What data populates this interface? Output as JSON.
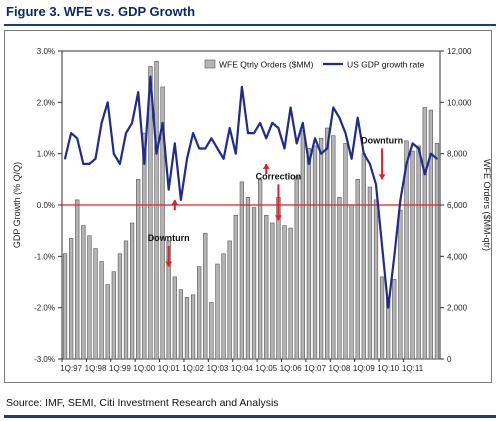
{
  "figure_title": "Figure 3. WFE vs. GDP Growth",
  "source": "Source: IMF, SEMI, Citi Investment Research and Analysis",
  "chart_data": {
    "type": "bar",
    "title": "",
    "x_tick_labels": [
      "1Q:97",
      "1Q:98",
      "1Q:99",
      "1Q:00",
      "1Q:01",
      "1Q:02",
      "1Q:03",
      "1Q:04",
      "1Q:05",
      "1Q:06",
      "1Q:07",
      "1Q:08",
      "1Q:09",
      "1Q:10",
      "1Q:11"
    ],
    "ylabel_left": "GDP Growth (% Q/Q)",
    "ylabel_right": "WFE Orders ($MM-qtr)",
    "ylim_left": [
      -3.0,
      3.0
    ],
    "ylim_right": [
      0,
      12000
    ],
    "left_ticks": [
      "3.0%",
      "2.0%",
      "1.0%",
      "0.0%",
      "-1.0%",
      "-2.0%",
      "-3.0%"
    ],
    "right_ticks": [
      "12,000",
      "10,000",
      "8,000",
      "6,000",
      "4,000",
      "2,000",
      "0"
    ],
    "zero_line_color": "#e02020",
    "legend_position": "top-right",
    "series": [
      {
        "name": "WFE Qtrly Orders ($MM)",
        "kind": "bar",
        "axis": "right",
        "color": "#b4b4b4",
        "values": [
          4100,
          4700,
          6200,
          5200,
          4800,
          4300,
          3800,
          2900,
          3400,
          4100,
          4600,
          5300,
          7000,
          8800,
          11400,
          11600,
          10600,
          4600,
          3200,
          2700,
          2400,
          2500,
          3600,
          4900,
          2200,
          3700,
          4100,
          4600,
          5600,
          6900,
          6300,
          5900,
          7000,
          5600,
          5300,
          6300,
          5200,
          5100,
          7100,
          8900,
          8200,
          8300,
          8600,
          9000,
          8700,
          6300,
          8400,
          6000,
          7000,
          8000,
          6700,
          6200,
          3200,
          2400,
          3100,
          5800,
          8500,
          8100,
          8300,
          9800,
          9700,
          8400
        ]
      },
      {
        "name": "US GDP growth rate",
        "kind": "line",
        "axis": "left",
        "color": "#1f2b8f",
        "values": [
          0.9,
          1.4,
          1.3,
          0.8,
          0.8,
          0.9,
          1.6,
          2.0,
          1.0,
          0.8,
          1.4,
          1.6,
          2.2,
          0.8,
          2.5,
          1.0,
          1.6,
          0.3,
          1.2,
          0.1,
          0.9,
          1.4,
          1.1,
          1.1,
          1.3,
          1.1,
          0.9,
          1.5,
          1.0,
          2.3,
          1.4,
          1.4,
          1.6,
          1.3,
          1.6,
          1.5,
          1.1,
          1.9,
          1.2,
          1.6,
          0.8,
          1.3,
          1.0,
          1.1,
          1.9,
          1.7,
          1.4,
          0.9,
          1.7,
          1.0,
          0.8,
          0.4,
          -0.8,
          -2.0,
          -1.0,
          0.1,
          0.8,
          1.2,
          1.1,
          0.6,
          1.0,
          0.9
        ]
      }
    ],
    "annotations": [
      {
        "text": "Downturn",
        "index": 17,
        "value": -0.7,
        "arrow": "down",
        "arrow_to": -1.2
      },
      {
        "text": "Correction",
        "index": 35,
        "value": 0.5,
        "arrow": "down",
        "arrow_to": -0.3
      },
      {
        "text": "Downturn",
        "index": 52,
        "value": 1.2,
        "arrow": "down",
        "arrow_to": 0.5
      },
      {
        "text": "",
        "index": 18,
        "value": 0.1,
        "arrow": "up",
        "arrow_to": -0.1
      },
      {
        "text": "",
        "index": 33,
        "value": 0.8,
        "arrow": "up",
        "arrow_to": 0.6
      }
    ]
  }
}
